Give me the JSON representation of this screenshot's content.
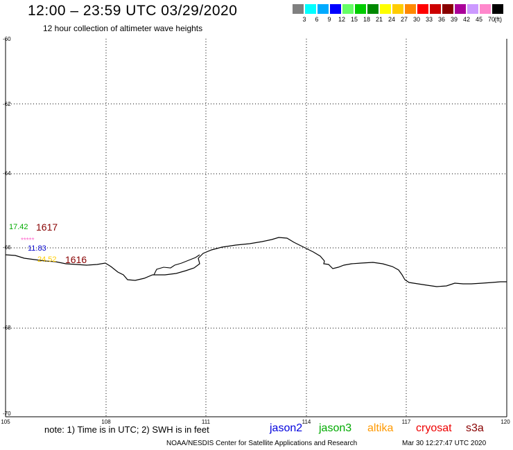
{
  "header": {
    "title": "12:00 – 23:59 UTC 03/29/2020",
    "subtitle": "12 hour collection of altimeter wave heights"
  },
  "scale": {
    "colors": [
      "#808080",
      "#00ffff",
      "#00aaff",
      "#0000ff",
      "#66ff66",
      "#00cc00",
      "#008800",
      "#ffff00",
      "#ffcc00",
      "#ff8800",
      "#ff0000",
      "#cc0000",
      "#880000",
      "#aa0099",
      "#cc99ff",
      "#ff88cc",
      "#000000"
    ],
    "labels": [
      "3",
      "6",
      "9",
      "12",
      "15",
      "18",
      "21",
      "24",
      "27",
      "30",
      "33",
      "36",
      "39",
      "42",
      "45",
      "70"
    ],
    "unit": "(ft)"
  },
  "axes": {
    "y_labels": [
      "-60",
      "-62",
      "-64",
      "-66",
      "-68",
      "-70"
    ],
    "x_labels": [
      "105",
      "108",
      "111",
      "114",
      "117",
      "120"
    ]
  },
  "annotations": [
    {
      "text": "17.42",
      "color": "#00aa00"
    },
    {
      "text": "1617",
      "color": "#880000"
    },
    {
      "text": "*****",
      "color": "#ff66cc"
    },
    {
      "text": "11.83",
      "color": "#0000cc"
    },
    {
      "text": "24.52",
      "color": "#ffcc00"
    },
    {
      "text": "1616",
      "color": "#880000"
    }
  ],
  "footer": {
    "note": "note:  1) Time is in UTC;  2) SWH is in feet",
    "satellites": [
      {
        "name": "jason2",
        "color": "#0000dd"
      },
      {
        "name": "jason3",
        "color": "#00aa00"
      },
      {
        "name": "altika",
        "color": "#ff9900"
      },
      {
        "name": "cryosat",
        "color": "#ee0000"
      },
      {
        "name": "s3a",
        "color": "#880000"
      }
    ],
    "credit": "NOAA/NESDIS Center for Satellite Applications and Research",
    "timestamp": "Mar 30 12:27:47 UTC 2020"
  }
}
